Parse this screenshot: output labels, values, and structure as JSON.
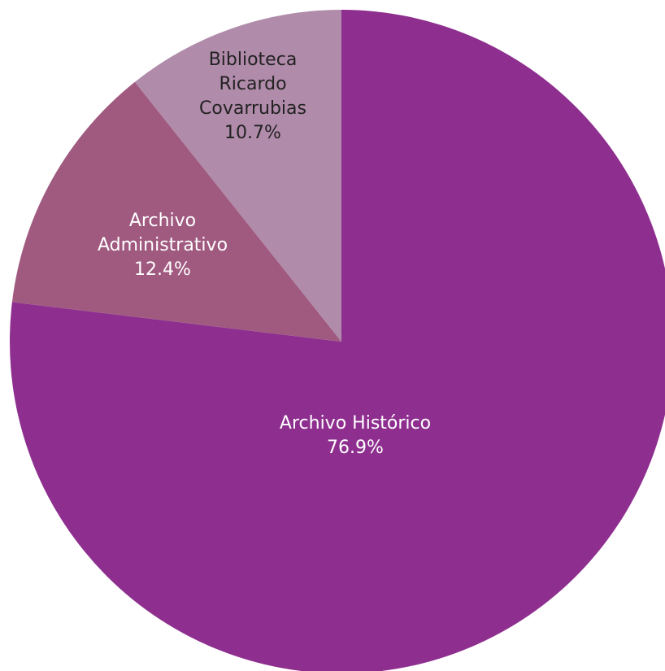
{
  "chart_data": {
    "type": "pie",
    "start_angle_deg": 0,
    "direction": "clockwise",
    "slices": [
      {
        "label": "Archivo Histórico",
        "label_lines": [
          "Archivo Histórico"
        ],
        "value": 76.9,
        "value_text": "76.9%",
        "color": "#8E2F8F",
        "text_color": "#FFFFFF"
      },
      {
        "label": "Archivo Administrativo",
        "label_lines": [
          "Archivo",
          "Administrativo"
        ],
        "value": 12.4,
        "value_text": "12.4%",
        "color": "#A05A80",
        "text_color": "#FFFFFF"
      },
      {
        "label": "Biblioteca Ricardo Covarrubias",
        "label_lines": [
          "Biblioteca",
          "Ricardo",
          "Covarrubias"
        ],
        "value": 10.7,
        "value_text": "10.7%",
        "color": "#B08BAA",
        "text_color": "#222222"
      }
    ]
  }
}
